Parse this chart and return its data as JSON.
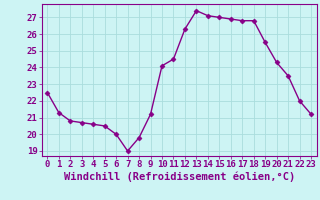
{
  "x": [
    0,
    1,
    2,
    3,
    4,
    5,
    6,
    7,
    8,
    9,
    10,
    11,
    12,
    13,
    14,
    15,
    16,
    17,
    18,
    19,
    20,
    21,
    22,
    23
  ],
  "y": [
    22.5,
    21.3,
    20.8,
    20.7,
    20.6,
    20.5,
    20.0,
    19.0,
    19.8,
    21.2,
    24.1,
    24.5,
    26.3,
    27.4,
    27.1,
    27.0,
    26.9,
    26.8,
    26.8,
    25.5,
    24.3,
    23.5,
    22.0,
    21.2
  ],
  "line_color": "#880088",
  "marker": "D",
  "marker_size": 2.5,
  "bg_color": "#cdf4f4",
  "grid_color": "#aadddd",
  "xlabel": "Windchill (Refroidissement éolien,°C)",
  "ylim": [
    18.7,
    27.8
  ],
  "xlim": [
    -0.5,
    23.5
  ],
  "yticks": [
    19,
    20,
    21,
    22,
    23,
    24,
    25,
    26,
    27
  ],
  "xticks": [
    0,
    1,
    2,
    3,
    4,
    5,
    6,
    7,
    8,
    9,
    10,
    11,
    12,
    13,
    14,
    15,
    16,
    17,
    18,
    19,
    20,
    21,
    22,
    23
  ],
  "tick_fontsize": 6.5,
  "xlabel_fontsize": 7.5,
  "label_color": "#880088",
  "spine_color": "#880088",
  "linewidth": 1.0
}
